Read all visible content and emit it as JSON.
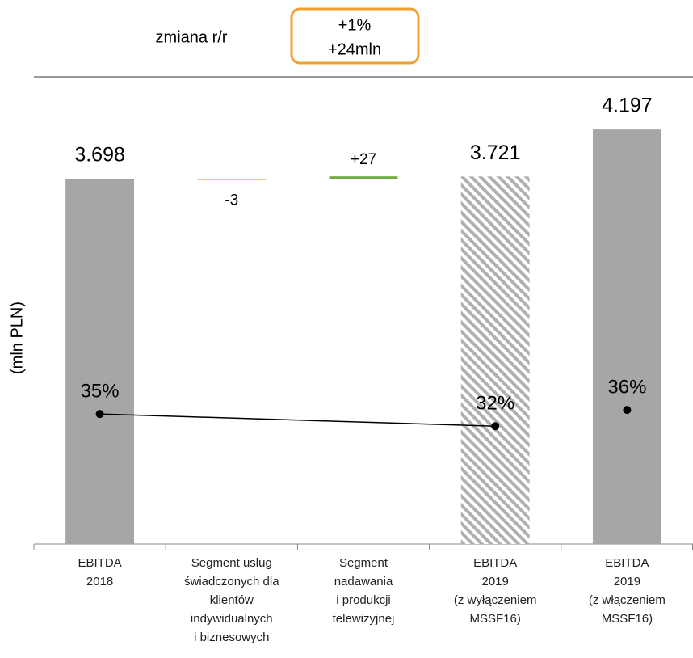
{
  "chart_data": {
    "type": "waterfall",
    "header_label": "zmiana r/r",
    "change_box": [
      "+1%",
      "+24mln"
    ],
    "y_axis_label": "(mln PLN)",
    "categories": [
      [
        "EBITDA",
        "2018"
      ],
      [
        "Segment usług",
        "świadczonych dla",
        "klientów",
        "indywidualnych",
        "i biznesowych"
      ],
      [
        "Segment",
        "nadawania",
        "i produkcji",
        "telewizyjnej"
      ],
      [
        "EBITDA",
        "2019",
        "(z wyłączeniem",
        "MSSF16)"
      ],
      [
        "EBITDA",
        "2019",
        "(z włączeniem",
        "MSSF16)"
      ]
    ],
    "measures": [
      "absolute",
      "relative",
      "relative",
      "absolute",
      "absolute"
    ],
    "values": [
      3698,
      -3,
      27,
      3721,
      4197
    ],
    "value_labels": [
      "3.698",
      "-3",
      "+27",
      "3.721",
      "4.197"
    ],
    "colors": [
      "#a6a6a6",
      "#f0a030",
      "#70ad47",
      "#a6a6a6",
      "#a6a6a6"
    ],
    "hatched": [
      false,
      false,
      false,
      true,
      false
    ],
    "ylim": [
      0,
      4730
    ],
    "y2lim": [
      3,
      118
    ],
    "margin_series": [
      {
        "values": [
          35,
          null,
          null,
          32,
          null
        ],
        "value_labels": [
          "35%",
          null,
          null,
          "32%",
          null
        ],
        "axis": "y2",
        "connect_gaps": true,
        "color": "#000000"
      },
      {
        "values": [
          null,
          null,
          null,
          null,
          36
        ],
        "value_labels": [
          null,
          null,
          null,
          null,
          "36%"
        ],
        "axis": "y2",
        "connect_gaps": true,
        "color": "#000000"
      }
    ]
  }
}
